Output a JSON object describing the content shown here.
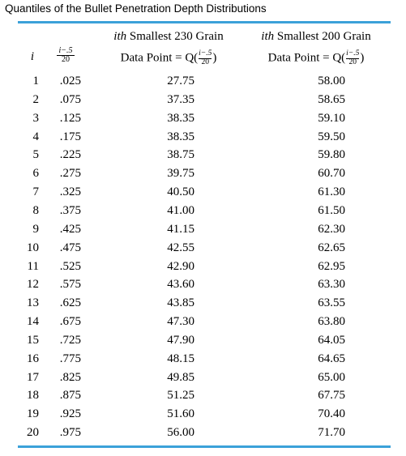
{
  "caption": "Quantiles of the Bullet Penetration Depth Distributions",
  "headers": {
    "i": "i",
    "frac_num": "i−.5",
    "frac_den": "20",
    "col230_line1_prefix": "ith",
    "col230_line1_rest": " Smallest 230 Grain",
    "col230_line2": "Data Point = Q(",
    "col230_line2_end": ")",
    "col200_line1_prefix": "ith",
    "col200_line1_rest": " Smallest 200 Grain",
    "col200_line2": "Data Point = Q(",
    "col200_line2_end": ")"
  },
  "rule_color": "#3ba1d9",
  "rows": [
    {
      "i": "1",
      "p": ".025",
      "g230": "27.75",
      "g200": "58.00"
    },
    {
      "i": "2",
      "p": ".075",
      "g230": "37.35",
      "g200": "58.65"
    },
    {
      "i": "3",
      "p": ".125",
      "g230": "38.35",
      "g200": "59.10"
    },
    {
      "i": "4",
      "p": ".175",
      "g230": "38.35",
      "g200": "59.50"
    },
    {
      "i": "5",
      "p": ".225",
      "g230": "38.75",
      "g200": "59.80"
    },
    {
      "i": "6",
      "p": ".275",
      "g230": "39.75",
      "g200": "60.70"
    },
    {
      "i": "7",
      "p": ".325",
      "g230": "40.50",
      "g200": "61.30"
    },
    {
      "i": "8",
      "p": ".375",
      "g230": "41.00",
      "g200": "61.50"
    },
    {
      "i": "9",
      "p": ".425",
      "g230": "41.15",
      "g200": "62.30"
    },
    {
      "i": "10",
      "p": ".475",
      "g230": "42.55",
      "g200": "62.65"
    },
    {
      "i": "11",
      "p": ".525",
      "g230": "42.90",
      "g200": "62.95"
    },
    {
      "i": "12",
      "p": ".575",
      "g230": "43.60",
      "g200": "63.30"
    },
    {
      "i": "13",
      "p": ".625",
      "g230": "43.85",
      "g200": "63.55"
    },
    {
      "i": "14",
      "p": ".675",
      "g230": "47.30",
      "g200": "63.80"
    },
    {
      "i": "15",
      "p": ".725",
      "g230": "47.90",
      "g200": "64.05"
    },
    {
      "i": "16",
      "p": ".775",
      "g230": "48.15",
      "g200": "64.65"
    },
    {
      "i": "17",
      "p": ".825",
      "g230": "49.85",
      "g200": "65.00"
    },
    {
      "i": "18",
      "p": ".875",
      "g230": "51.25",
      "g200": "67.75"
    },
    {
      "i": "19",
      "p": ".925",
      "g230": "51.60",
      "g200": "70.40"
    },
    {
      "i": "20",
      "p": ".975",
      "g230": "56.00",
      "g200": "71.70"
    }
  ]
}
